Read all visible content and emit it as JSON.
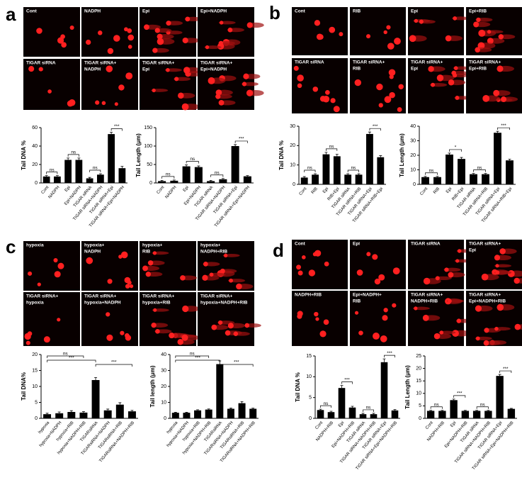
{
  "panels": [
    {
      "letter": "a",
      "images": [
        [
          "Cont"
        ],
        [
          "NADPH"
        ],
        [
          "Epi"
        ],
        [
          "Epi+NADPH"
        ],
        [
          "TIGAR siRNA"
        ],
        [
          "TIGAR siRNA+",
          "NADPH"
        ],
        [
          "TIGAR siRNA+",
          "Epi"
        ],
        [
          "TIGAR siRNA+",
          "Epi+NADPH"
        ]
      ]
    },
    {
      "letter": "b",
      "images": [
        [
          "Cont"
        ],
        [
          "RIB"
        ],
        [
          "Epi"
        ],
        [
          "Epi+RIB"
        ],
        [
          "TIGAR siRNA"
        ],
        [
          "TIGAR siRNA+",
          "RIB"
        ],
        [
          "TIGAR siRNA+",
          "Epi"
        ],
        [
          "TIGAR siRNA+",
          "Epi+RIB"
        ]
      ]
    },
    {
      "letter": "c",
      "images": [
        [
          "hypoxia"
        ],
        [
          "hypoxia+",
          "NADPH"
        ],
        [
          "hypoxia+",
          "RIB"
        ],
        [
          "hypoxia+",
          "NADPH+RIB"
        ],
        [
          "TIGAR siRNA+",
          "hypoxia"
        ],
        [
          "TIGAR siRNA+",
          "hypoxia+NADPH"
        ],
        [
          "TIGAR siRNA+",
          "hypoxia+RIB"
        ],
        [
          "TIGAR siRNA+",
          "hypoxia+NADPH+RIB"
        ]
      ]
    },
    {
      "letter": "d",
      "images": [
        [
          "Cont"
        ],
        [
          "Epi"
        ],
        [
          "TIGAR siRNA"
        ],
        [
          "TIGAR siRNA+",
          "Epi"
        ],
        [
          "NADPH+RIB"
        ],
        [
          "Epi+NADPH+",
          "RIB"
        ],
        [
          "TIGAR siRNA+",
          "NADPH+RIB"
        ],
        [
          "TIGAR siRNA+",
          "Epi+NADPH+RIB"
        ]
      ]
    }
  ],
  "chart_data": [
    {
      "type": "bar",
      "y_label": "Tail DNA %",
      "color": "#000000",
      "categories": [
        "Cont",
        "NADPH",
        "Epi",
        "Epi+NADPH",
        "TIGAR siRNA",
        "TIGAR siRNA+NADPH",
        "TIGAR siRNA+Epi",
        "TIGAR siRNA+Epi+NADPH"
      ],
      "values": [
        7,
        7,
        25,
        25,
        5,
        9,
        53,
        16
      ],
      "errors": [
        1,
        1,
        2,
        2,
        1,
        1,
        2,
        2
      ],
      "ylim": [
        0,
        60
      ],
      "yticks": [
        0,
        20,
        40,
        60
      ],
      "annotations": [
        {
          "text": "ns",
          "between": [
            0,
            1
          ]
        },
        {
          "text": "ns",
          "between": [
            2,
            3
          ]
        },
        {
          "text": "ns",
          "between": [
            4,
            5
          ]
        },
        {
          "text": "***",
          "between": [
            6,
            7
          ]
        }
      ]
    },
    {
      "type": "bar",
      "y_label": "Tail Length (μm)",
      "color": "#000000",
      "categories": [
        "Cont",
        "NADPH",
        "Epi",
        "Epi+NADPH",
        "TIGAR siRNA",
        "TIGAR siRNA+NADPH",
        "TIGAR siRNA+Epi",
        "TIGAR siRNA+Epi+NADPH"
      ],
      "values": [
        5,
        6,
        45,
        43,
        5,
        10,
        100,
        18
      ],
      "errors": [
        2,
        2,
        4,
        3,
        2,
        2,
        4,
        2
      ],
      "ylim": [
        0,
        150
      ],
      "yticks": [
        0,
        50,
        100,
        150
      ],
      "annotations": [
        {
          "text": "ns",
          "between": [
            0,
            1
          ]
        },
        {
          "text": "ns",
          "between": [
            2,
            3
          ]
        },
        {
          "text": "ns",
          "between": [
            4,
            5
          ]
        },
        {
          "text": "***",
          "between": [
            6,
            7
          ]
        }
      ]
    },
    {
      "type": "bar",
      "y_label": "Tail DNA %",
      "color": "#000000",
      "categories": [
        "Cont",
        "RIB",
        "Epi",
        "RIB+Epi",
        "TIGAR siRNA",
        "TIGAR siRNA+RIB",
        "TIGAR siRNA+Epi",
        "TIGAR siRNA+RIB+Epi"
      ],
      "values": [
        3.5,
        5,
        15.5,
        14.5,
        5,
        5,
        26,
        14
      ],
      "errors": [
        0.5,
        0.5,
        1,
        1,
        0.5,
        0.5,
        1,
        0.8
      ],
      "ylim": [
        0,
        30
      ],
      "yticks": [
        0,
        10,
        20,
        30
      ],
      "annotations": [
        {
          "text": "ns",
          "between": [
            0,
            1
          ]
        },
        {
          "text": "ns",
          "between": [
            2,
            3
          ]
        },
        {
          "text": "ns",
          "between": [
            4,
            5
          ]
        },
        {
          "text": "***",
          "between": [
            6,
            7
          ]
        }
      ]
    },
    {
      "type": "bar",
      "y_label": "Tail Length (μm)",
      "color": "#000000",
      "categories": [
        "Cont",
        "RIB",
        "Epi",
        "RIB+Epi",
        "TIGAR siRNA",
        "TIGAR siRNA+RIB",
        "TIGAR siRNA+Epi",
        "TIGAR siRNA+RIB+Epi"
      ],
      "values": [
        5,
        5,
        20.5,
        17.5,
        7,
        7,
        35.5,
        16.5
      ],
      "errors": [
        0.5,
        0.5,
        1,
        1,
        0.5,
        0.5,
        1,
        0.8
      ],
      "ylim": [
        0,
        40
      ],
      "yticks": [
        0,
        10,
        20,
        30,
        40
      ],
      "annotations": [
        {
          "text": "ns",
          "between": [
            0,
            1
          ]
        },
        {
          "text": "*",
          "between": [
            2,
            3
          ]
        },
        {
          "text": "ns",
          "between": [
            4,
            5
          ]
        },
        {
          "text": "***",
          "between": [
            6,
            7
          ]
        }
      ]
    },
    {
      "type": "bar",
      "y_label": "Tail DNA%",
      "color": "#000000",
      "categories": [
        "hypoxia",
        "hypoxia+NADPH",
        "hypoxia+RIB",
        "hypoxia+NADPH+RIB",
        "TIGARsiRNA",
        "TIGARsiRNA+NADPH",
        "TIGARsiRNA+RIB",
        "TIGARsiRNA+NADPH+RIB"
      ],
      "values": [
        1.3,
        1.6,
        2,
        1.8,
        12,
        2.5,
        4.3,
        2.2
      ],
      "errors": [
        0.3,
        0.4,
        0.4,
        0.3,
        0.8,
        0.4,
        0.6,
        0.3
      ],
      "ylim": [
        0,
        20
      ],
      "yticks": [
        0,
        5,
        10,
        15,
        20
      ],
      "annotations": [
        {
          "text": "ns",
          "between": [
            0,
            3
          ]
        },
        {
          "text": "***",
          "between": [
            0,
            4
          ]
        },
        {
          "text": "***",
          "between": [
            4,
            7
          ]
        }
      ]
    },
    {
      "type": "bar",
      "y_label": "Tail length (μm)",
      "color": "#000000",
      "categories": [
        "hypoxia",
        "hypoxia+NADPH",
        "hypoxia+RIB",
        "hypoxia+NADPH+RIB",
        "TIGARsiRNA",
        "TIGARsiRNA+NADPH",
        "TIGARsiRNA+RIB",
        "TIGARsiRNA+NADPH+RIB"
      ],
      "values": [
        3.5,
        3.5,
        5,
        5.5,
        34,
        6,
        9.5,
        6
      ],
      "errors": [
        0.3,
        0.3,
        0.4,
        0.4,
        2,
        0.5,
        1,
        0.4
      ],
      "ylim": [
        0,
        40
      ],
      "yticks": [
        0,
        10,
        20,
        30,
        40
      ],
      "annotations": [
        {
          "text": "ns",
          "between": [
            0,
            3
          ]
        },
        {
          "text": "***",
          "between": [
            0,
            4
          ]
        },
        {
          "text": "***",
          "between": [
            4,
            7
          ]
        }
      ]
    },
    {
      "type": "bar",
      "y_label": "Tail DNA %",
      "color": "#000000",
      "categories": [
        "Cont",
        "NADPH+RIB",
        "Epi",
        "Epi+NADPH+RIB",
        "TIGAR siRNA",
        "TIGAR siRNA+NADPH+RIB",
        "TIGAR siRNA+Epi",
        "TIGAR siRNA+Epi+NADPH+RIB"
      ],
      "values": [
        2,
        1.5,
        7.3,
        2.6,
        1,
        1,
        13.5,
        1.9
      ],
      "errors": [
        0.2,
        0.2,
        0.6,
        0.3,
        0.2,
        0.2,
        0.8,
        0.2
      ],
      "ylim": [
        0,
        15
      ],
      "yticks": [
        0,
        5,
        10,
        15
      ],
      "annotations": [
        {
          "text": "ns",
          "between": [
            0,
            1
          ]
        },
        {
          "text": "***",
          "between": [
            2,
            3
          ]
        },
        {
          "text": "ns",
          "between": [
            4,
            5
          ]
        },
        {
          "text": "***",
          "between": [
            6,
            7
          ]
        }
      ]
    },
    {
      "type": "bar",
      "y_label": "Tail Length (μm)",
      "color": "#000000",
      "categories": [
        "Cont",
        "NADPH+RIB",
        "Epi",
        "Epi+NADPH+RIB",
        "TIGAR siRNA",
        "TIGAR siRNA+NADPH+RIB",
        "TIGAR siRNA+Epi",
        "TIGAR siRNA+Epi+NADPH+RIB"
      ],
      "values": [
        3,
        3,
        7.3,
        3,
        3,
        3,
        17,
        3.8
      ],
      "errors": [
        0.2,
        0.2,
        0.4,
        0.2,
        0.2,
        0.2,
        0.6,
        0.2
      ],
      "ylim": [
        0,
        25
      ],
      "yticks": [
        0,
        5,
        10,
        15,
        20,
        25
      ],
      "annotations": [
        {
          "text": "ns",
          "between": [
            0,
            1
          ]
        },
        {
          "text": "***",
          "between": [
            2,
            3
          ]
        },
        {
          "text": "ns",
          "between": [
            4,
            5
          ]
        },
        {
          "text": "***",
          "between": [
            6,
            7
          ]
        }
      ]
    }
  ]
}
